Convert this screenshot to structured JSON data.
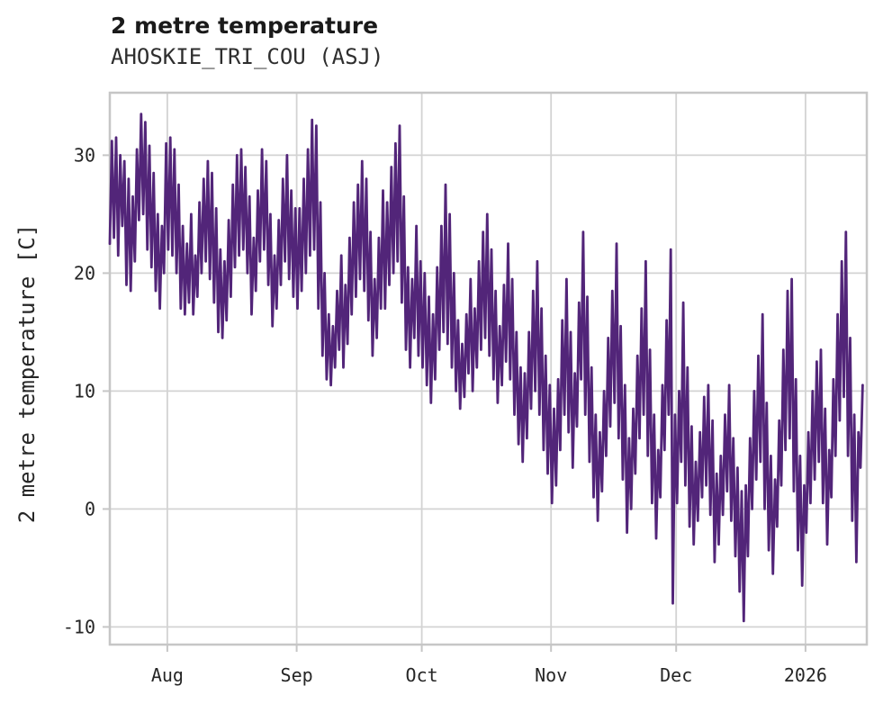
{
  "chart_data": {
    "type": "line",
    "title": "2 metre temperature",
    "subtitle": "AHOSKIE_TRI_COU (ASJ)",
    "ylabel": "2 metre temperature [C]",
    "xlabel": "",
    "legend": null,
    "grid": true,
    "style": {
      "line_color": "#522579",
      "grid_color": "#d3d3d3",
      "border_color": "#c6c6c6",
      "tick_mark_color": "#c6c6c6",
      "tick_text_color": "#262626",
      "background": "#ffffff",
      "line_width": 2.8
    },
    "ylim": [
      -11.5,
      35.3
    ],
    "xlim_days": [
      0.2,
      181.7
    ],
    "y_ticks": [
      {
        "label": "-10",
        "value": -10
      },
      {
        "label": "0",
        "value": 0
      },
      {
        "label": "10",
        "value": 10
      },
      {
        "label": "20",
        "value": 20
      },
      {
        "label": "30",
        "value": 30
      }
    ],
    "x_ticks": [
      {
        "label": "Aug",
        "day_index": 14
      },
      {
        "label": "Sep",
        "day_index": 45
      },
      {
        "label": "Oct",
        "day_index": 75
      },
      {
        "label": "Nov",
        "day_index": 106
      },
      {
        "label": "Dec",
        "day_index": 136
      },
      {
        "label": "2026",
        "day_index": 167
      }
    ],
    "series": [
      {
        "name": "2 metre temperature",
        "points_per_day": 2,
        "daily_min_max": [
          [
            22.5,
            31.2
          ],
          [
            23,
            31.5
          ],
          [
            21.5,
            30
          ],
          [
            24,
            29.5
          ],
          [
            19,
            28
          ],
          [
            18.5,
            26.5
          ],
          [
            21,
            30.5
          ],
          [
            24.5,
            33.5
          ],
          [
            25,
            32.8
          ],
          [
            22,
            30.8
          ],
          [
            20.5,
            28.5
          ],
          [
            18.5,
            25
          ],
          [
            17,
            24
          ],
          [
            20,
            31
          ],
          [
            22,
            31.5
          ],
          [
            21.5,
            30.5
          ],
          [
            20,
            27.5
          ],
          [
            17,
            24
          ],
          [
            16.5,
            22.5
          ],
          [
            17.5,
            25
          ],
          [
            16.5,
            21.5
          ],
          [
            18,
            26
          ],
          [
            20,
            28
          ],
          [
            21,
            29.5
          ],
          [
            19.5,
            28.5
          ],
          [
            17.5,
            25.5
          ],
          [
            15,
            22
          ],
          [
            14.5,
            21
          ],
          [
            16,
            24.5
          ],
          [
            18,
            27.5
          ],
          [
            20.5,
            30
          ],
          [
            21.5,
            30.5
          ],
          [
            22,
            29
          ],
          [
            20,
            26.5
          ],
          [
            16.5,
            23
          ],
          [
            18.5,
            27
          ],
          [
            21,
            30.5
          ],
          [
            22,
            29.5
          ],
          [
            19,
            25
          ],
          [
            15.5,
            21.5
          ],
          [
            17,
            24.5
          ],
          [
            19,
            28
          ],
          [
            21,
            30
          ],
          [
            19.5,
            27
          ],
          [
            18,
            25.5
          ],
          [
            17,
            25.5
          ],
          [
            18.5,
            28
          ],
          [
            20,
            30.5
          ],
          [
            21.5,
            33
          ],
          [
            22,
            32.5
          ],
          [
            17,
            26
          ],
          [
            13,
            20
          ],
          [
            11,
            16.5
          ],
          [
            10.5,
            15.5
          ],
          [
            12,
            18.5
          ],
          [
            13.5,
            21.5
          ],
          [
            12,
            19
          ],
          [
            14,
            23
          ],
          [
            16.5,
            26
          ],
          [
            18,
            27.5
          ],
          [
            19.5,
            29.5
          ],
          [
            18.5,
            28
          ],
          [
            16,
            23.5
          ],
          [
            13,
            19.5
          ],
          [
            14.5,
            23
          ],
          [
            17,
            27
          ],
          [
            17,
            26
          ],
          [
            19,
            29
          ],
          [
            20,
            31
          ],
          [
            21,
            32.5
          ],
          [
            17.5,
            26.5
          ],
          [
            13.5,
            20.5
          ],
          [
            12,
            19.5
          ],
          [
            14.5,
            24
          ],
          [
            13,
            21
          ],
          [
            12,
            20
          ],
          [
            10.5,
            18
          ],
          [
            9,
            16.5
          ],
          [
            11,
            20.5
          ],
          [
            13.5,
            24
          ],
          [
            15,
            27.5
          ],
          [
            14,
            25
          ],
          [
            12,
            20
          ],
          [
            10,
            16
          ],
          [
            8.5,
            14
          ],
          [
            9.5,
            16.5
          ],
          [
            11.5,
            19.5
          ],
          [
            10,
            17
          ],
          [
            12,
            21
          ],
          [
            13.5,
            23.5
          ],
          [
            14.5,
            25
          ],
          [
            13,
            22
          ],
          [
            11,
            18.5
          ],
          [
            9,
            15.5
          ],
          [
            10.5,
            19
          ],
          [
            12.5,
            22.5
          ],
          [
            11,
            19.5
          ],
          [
            8,
            15
          ],
          [
            5.5,
            12
          ],
          [
            4,
            11.5
          ],
          [
            6,
            15
          ],
          [
            8.5,
            18.5
          ],
          [
            10,
            21
          ],
          [
            8,
            17
          ],
          [
            5,
            13
          ],
          [
            3,
            10.5
          ],
          [
            0.5,
            8.5
          ],
          [
            2,
            11
          ],
          [
            5,
            16
          ],
          [
            8,
            19.5
          ],
          [
            6.5,
            15
          ],
          [
            3.5,
            11.5
          ],
          [
            7,
            17.5
          ],
          [
            11,
            23.5
          ],
          [
            8,
            18
          ],
          [
            4,
            12
          ],
          [
            1,
            8
          ],
          [
            -1,
            6.5
          ],
          [
            1.5,
            10
          ],
          [
            4.5,
            14.5
          ],
          [
            7,
            18.5
          ],
          [
            9,
            22.5
          ],
          [
            6,
            15.5
          ],
          [
            2.5,
            10.5
          ],
          [
            -2,
            6
          ],
          [
            0,
            8.5
          ],
          [
            3,
            13
          ],
          [
            6,
            17
          ],
          [
            8,
            21
          ],
          [
            4.5,
            13.5
          ],
          [
            0.5,
            8
          ],
          [
            -2.5,
            5
          ],
          [
            1,
            10.5
          ],
          [
            5,
            16
          ],
          [
            8,
            22
          ],
          [
            -8,
            8
          ],
          [
            0.5,
            10
          ],
          [
            4,
            17.5
          ],
          [
            2,
            12
          ],
          [
            -1.5,
            7
          ],
          [
            -3,
            4
          ],
          [
            -1,
            6.5
          ],
          [
            1,
            9.5
          ],
          [
            2,
            10.5
          ],
          [
            -0.5,
            7.5
          ],
          [
            -4.5,
            3
          ],
          [
            -3,
            4.5
          ],
          [
            -0.5,
            8
          ],
          [
            1.5,
            10.5
          ],
          [
            -1,
            6
          ],
          [
            -4,
            3.5
          ],
          [
            -7,
            1.5
          ],
          [
            -9.5,
            2
          ],
          [
            -4,
            6
          ],
          [
            0,
            10
          ],
          [
            2.5,
            13
          ],
          [
            4,
            16.5
          ],
          [
            0,
            9
          ],
          [
            -3.5,
            4.5
          ],
          [
            -5.5,
            2.5
          ],
          [
            -1.5,
            7.5
          ],
          [
            2,
            13.5
          ],
          [
            5,
            18.5
          ],
          [
            6,
            19.5
          ],
          [
            1.5,
            11
          ],
          [
            -3.5,
            4.5
          ],
          [
            -6.5,
            2
          ],
          [
            -2,
            6.5
          ],
          [
            0.5,
            10
          ],
          [
            2.5,
            12.5
          ],
          [
            4,
            13.5
          ],
          [
            0.5,
            8.5
          ],
          [
            -3,
            5
          ],
          [
            1,
            11
          ],
          [
            4.5,
            16.5
          ],
          [
            7.5,
            21
          ],
          [
            9.5,
            23.5
          ],
          [
            4.5,
            14.5
          ],
          [
            -1,
            8
          ],
          [
            -4.5,
            6.5
          ],
          [
            3.5,
            10.5
          ]
        ]
      }
    ]
  }
}
